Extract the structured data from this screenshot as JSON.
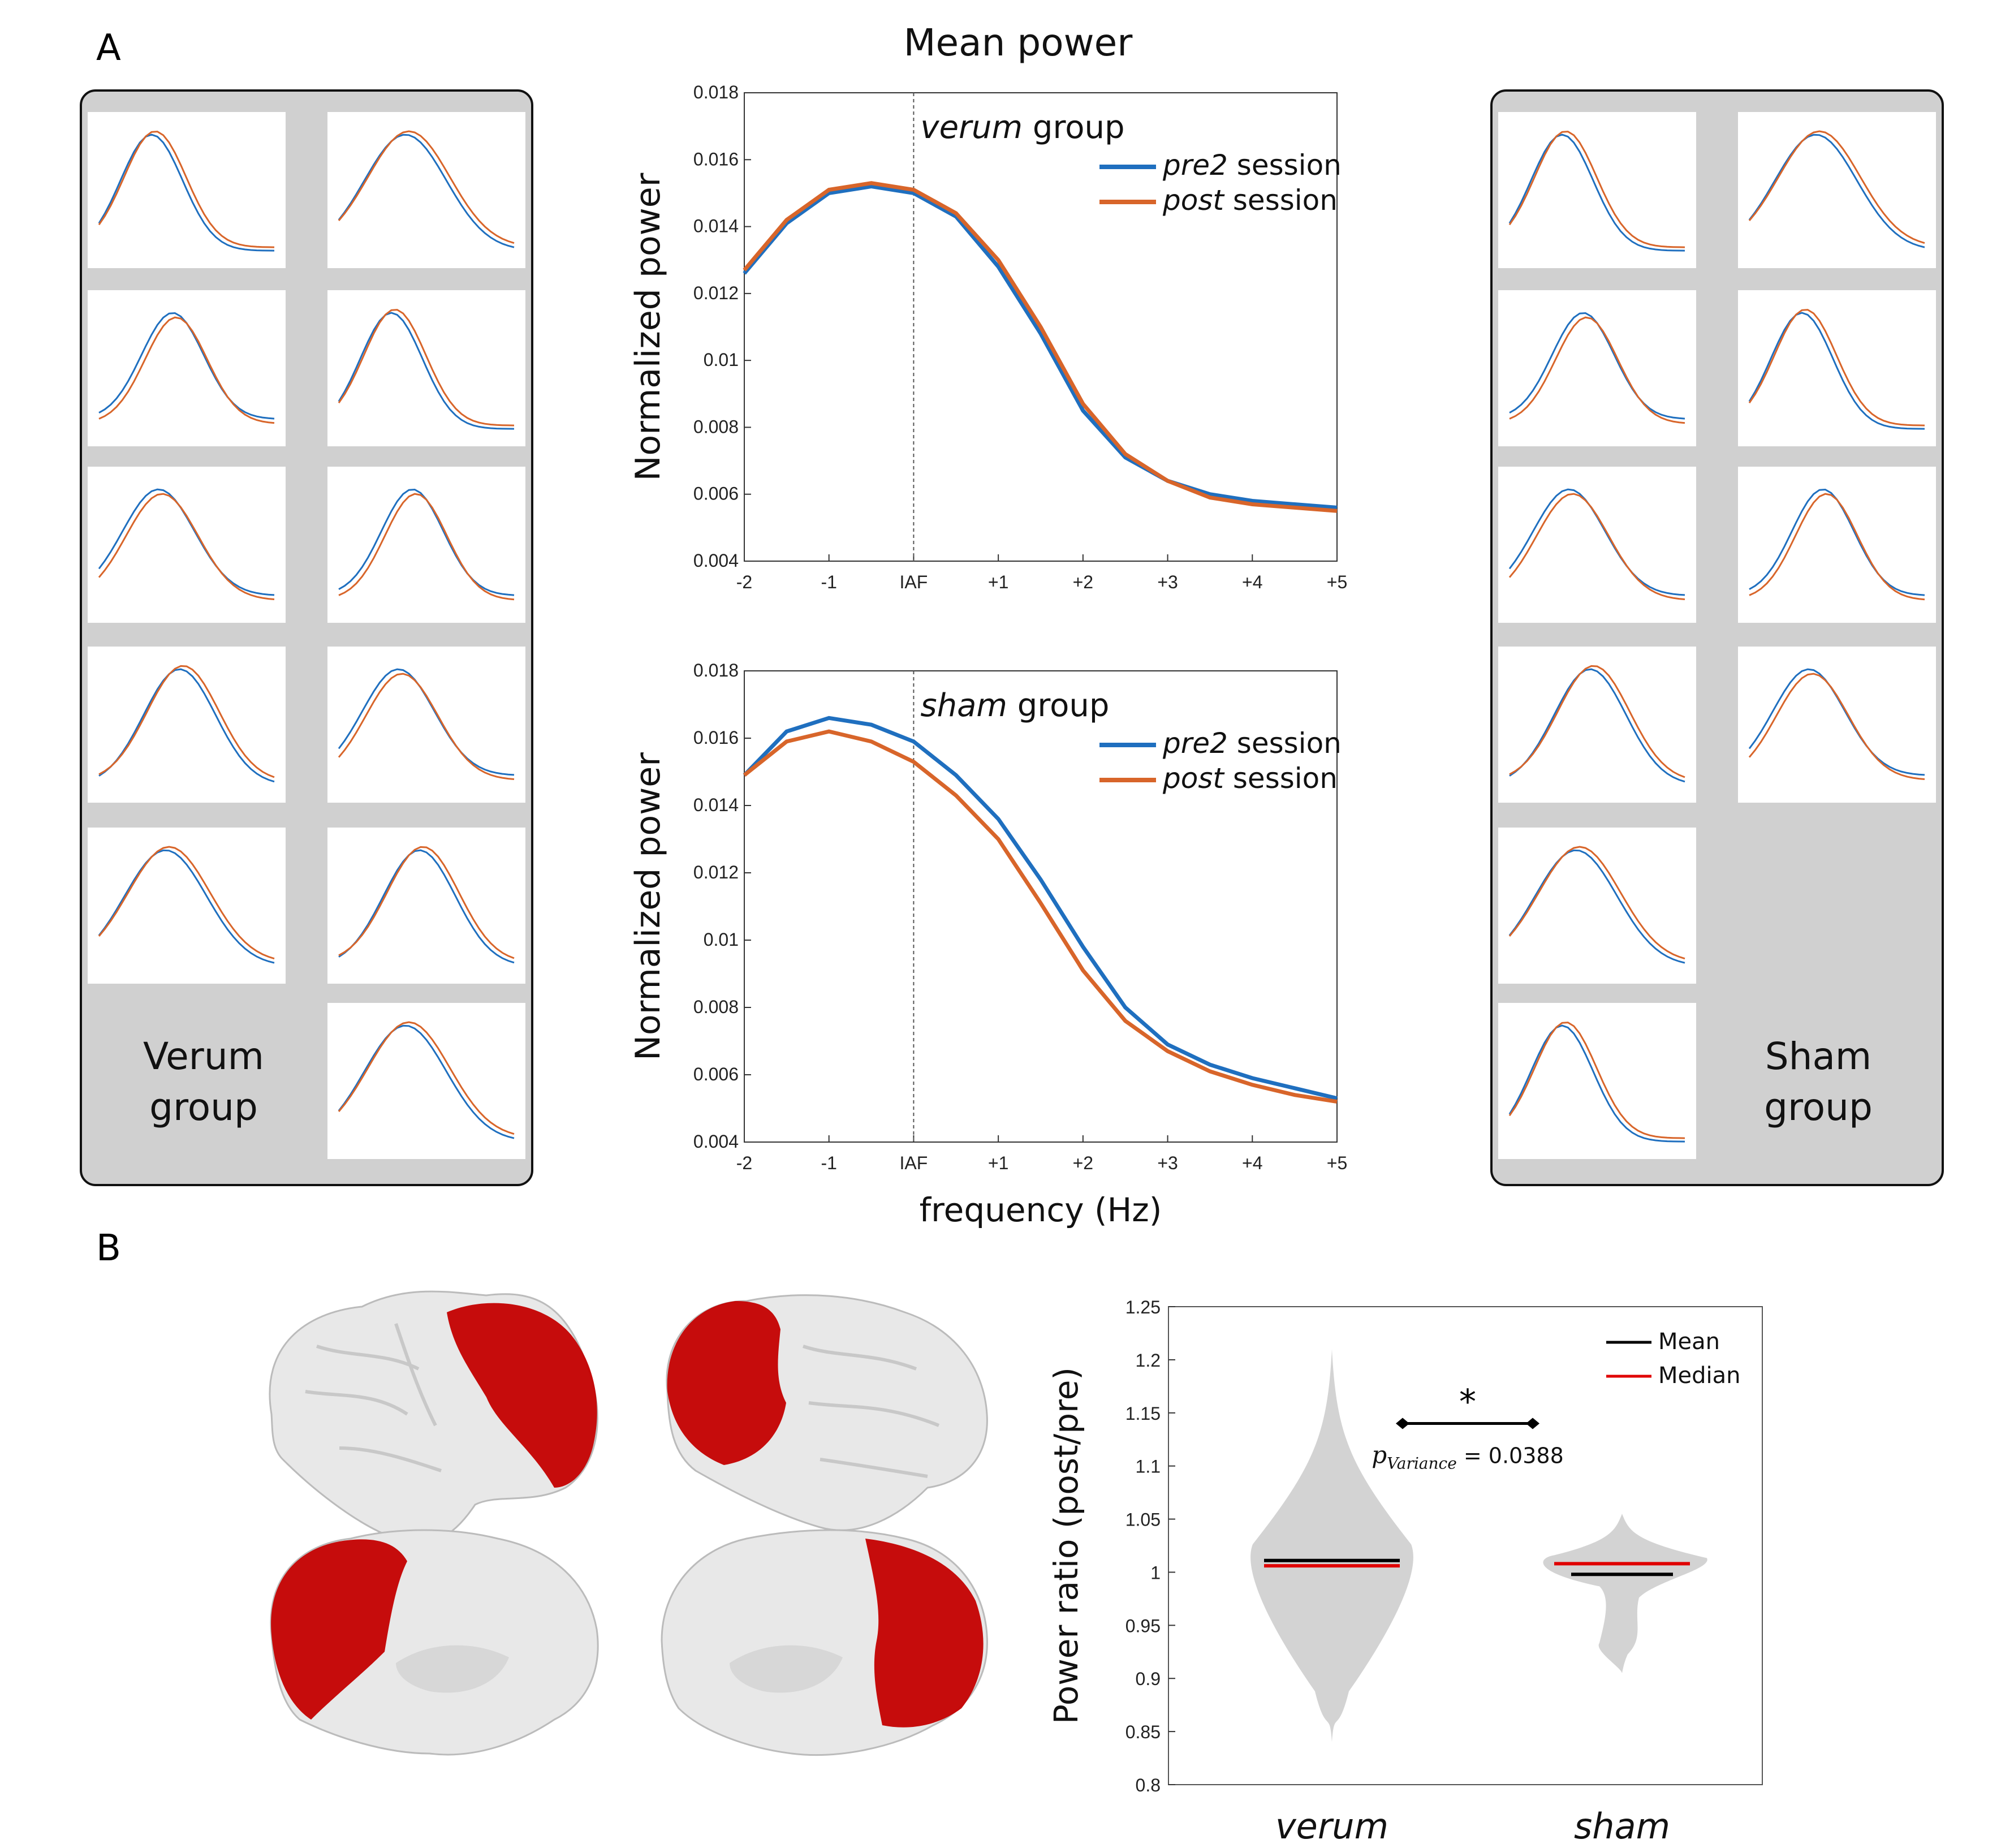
{
  "figure": {
    "panel_a_label": "A",
    "panel_b_label": "B",
    "mean_power_title": "Mean power",
    "verum_group_label": [
      "Verum",
      "group"
    ],
    "sham_group_label": [
      "Sham",
      "group"
    ],
    "colors": {
      "pre2": "#1f6fbf",
      "post": "#d8652a",
      "panel_bg": "#d0d0d0",
      "brain_red": "#c40000",
      "median": "#e00000",
      "violin": "#d3d3d3"
    }
  },
  "chart_data": [
    {
      "type": "line",
      "panel": "A-top",
      "title_parts": {
        "italic": "verum",
        "rest": " group"
      },
      "ylabel": "Normalized power",
      "xlabel": "",
      "x_tick_labels": [
        "-2",
        "-1",
        "IAF",
        "+1",
        "+2",
        "+3",
        "+4",
        "+5"
      ],
      "x_tick_values": [
        -2,
        -1,
        0,
        1,
        2,
        3,
        4,
        5
      ],
      "y_tick_labels": [
        "0.004",
        "0.006",
        "0.008",
        "0.01",
        "0.012",
        "0.014",
        "0.016",
        "0.018"
      ],
      "ylim": [
        0.004,
        0.018
      ],
      "xlim": [
        -2,
        5
      ],
      "vline_at": 0,
      "grid": false,
      "legend_position": "top-right",
      "x": [
        -2,
        -1.5,
        -1,
        -0.5,
        0,
        0.5,
        1,
        1.5,
        2,
        2.5,
        3,
        3.5,
        4,
        4.5,
        5
      ],
      "series": [
        {
          "name_italic": "pre2",
          "name_rest": " session",
          "color": "#1f6fbf",
          "values": [
            0.0126,
            0.0141,
            0.015,
            0.0152,
            0.015,
            0.0143,
            0.0128,
            0.0108,
            0.0085,
            0.0071,
            0.0064,
            0.006,
            0.0058,
            0.0057,
            0.0056
          ]
        },
        {
          "name_italic": "post",
          "name_rest": " session",
          "color": "#d8652a",
          "values": [
            0.0127,
            0.0142,
            0.0151,
            0.0153,
            0.0151,
            0.0144,
            0.013,
            0.011,
            0.0087,
            0.0072,
            0.0064,
            0.0059,
            0.0057,
            0.0056,
            0.0055
          ]
        }
      ]
    },
    {
      "type": "line",
      "panel": "A-bottom",
      "title_parts": {
        "italic": "sham",
        "rest": " group"
      },
      "ylabel": "Normalized power",
      "xlabel": "frequency (Hz)",
      "x_tick_labels": [
        "-2",
        "-1",
        "IAF",
        "+1",
        "+2",
        "+3",
        "+4",
        "+5"
      ],
      "x_tick_values": [
        -2,
        -1,
        0,
        1,
        2,
        3,
        4,
        5
      ],
      "y_tick_labels": [
        "0.004",
        "0.006",
        "0.008",
        "0.01",
        "0.012",
        "0.014",
        "0.016",
        "0.018"
      ],
      "ylim": [
        0.004,
        0.018
      ],
      "xlim": [
        -2,
        5
      ],
      "vline_at": 0,
      "grid": false,
      "legend_position": "top-right",
      "x": [
        -2,
        -1.5,
        -1,
        -0.5,
        0,
        0.5,
        1,
        1.5,
        2,
        2.5,
        3,
        3.5,
        4,
        4.5,
        5
      ],
      "series": [
        {
          "name_italic": "pre2",
          "name_rest": " session",
          "color": "#1f6fbf",
          "values": [
            0.0149,
            0.0162,
            0.0166,
            0.0164,
            0.0159,
            0.0149,
            0.0136,
            0.0118,
            0.0098,
            0.008,
            0.0069,
            0.0063,
            0.0059,
            0.0056,
            0.0053
          ]
        },
        {
          "name_italic": "post",
          "name_rest": " session",
          "color": "#d8652a",
          "values": [
            0.0149,
            0.0159,
            0.0162,
            0.0159,
            0.0153,
            0.0143,
            0.013,
            0.0111,
            0.0091,
            0.0076,
            0.0067,
            0.0061,
            0.0057,
            0.0054,
            0.0052
          ]
        }
      ]
    },
    {
      "type": "violin",
      "panel": "B",
      "ylabel": "Power ratio (post/pre)",
      "categories": [
        "verum",
        "sham"
      ],
      "y_tick_labels": [
        "0.8",
        "0.85",
        "0.9",
        "0.95",
        "1",
        "1.05",
        "1.1",
        "1.15",
        "1.2",
        "1.25"
      ],
      "ylim": [
        0.8,
        1.25
      ],
      "legend": [
        {
          "label": "Mean",
          "color": "#000000"
        },
        {
          "label": "Median",
          "color": "#e00000"
        }
      ],
      "legend_position": "top-right",
      "groups": [
        {
          "name": "verum",
          "mean": 1.011,
          "median": 1.006,
          "min": 0.84,
          "max": 1.21
        },
        {
          "name": "sham",
          "mean": 0.998,
          "median": 1.008,
          "min": 0.905,
          "max": 1.055
        }
      ],
      "significance": {
        "marker": "*",
        "p_label_main": "p",
        "p_label_sub": "Variance",
        "p_value_text": " = 0.0388"
      }
    }
  ]
}
